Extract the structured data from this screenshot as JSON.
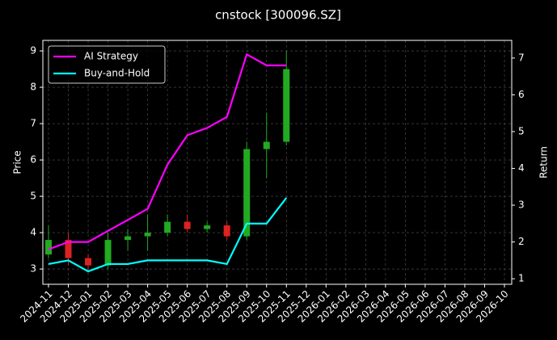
{
  "chart_data": {
    "type": "candlestick",
    "title": "cnstock [300096.SZ]",
    "y_label": "Price",
    "y2_label": "Return",
    "x": [
      "2024-11",
      "2024-12",
      "2025-01",
      "2025-02",
      "2025-03",
      "2025-04",
      "2025-05",
      "2025-06",
      "2025-07",
      "2025-08",
      "2025-09",
      "2025-10",
      "2025-11"
    ],
    "open": [
      3.4,
      3.8,
      3.3,
      3.1,
      3.8,
      3.9,
      4.0,
      4.3,
      4.1,
      4.2,
      3.9,
      6.3,
      6.5
    ],
    "high": [
      4.2,
      4.0,
      3.4,
      4.0,
      4.1,
      4.5,
      4.5,
      4.5,
      4.3,
      4.3,
      6.5,
      7.3,
      9.0
    ],
    "low": [
      3.3,
      3.1,
      2.9,
      3.0,
      3.5,
      3.5,
      3.9,
      4.0,
      4.0,
      3.8,
      3.8,
      5.5,
      6.4
    ],
    "close": [
      3.8,
      3.3,
      3.1,
      3.8,
      3.9,
      4.0,
      4.3,
      4.1,
      4.2,
      3.9,
      6.3,
      6.5,
      8.5
    ],
    "up_color": "#22aa22",
    "down_color": "#dd2222",
    "series": [
      {
        "name": "AI Strategy",
        "color": "#ff00ff",
        "axis": "y2",
        "values": [
          1.8,
          2.0,
          2.0,
          2.3,
          2.6,
          2.9,
          4.1,
          4.9,
          5.1,
          5.4,
          7.1,
          6.8,
          6.8
        ]
      },
      {
        "name": "Buy-and-Hold",
        "color": "#00ffff",
        "axis": "y2",
        "values": [
          1.4,
          1.5,
          1.2,
          1.4,
          1.4,
          1.5,
          1.5,
          1.5,
          1.5,
          1.4,
          2.5,
          2.5,
          3.2
        ]
      }
    ],
    "xlim": [
      "2024-11",
      "2026-10"
    ],
    "xticks": [
      "2024-11",
      "2024-12",
      "2025-01",
      "2025-02",
      "2025-03",
      "2025-04",
      "2025-05",
      "2025-06",
      "2025-07",
      "2025-08",
      "2025-09",
      "2025-10",
      "2025-11",
      "2025-12",
      "2026-01",
      "2026-02",
      "2026-03",
      "2026-04",
      "2026-05",
      "2026-06",
      "2026-07",
      "2026-08",
      "2026-09",
      "2026-10"
    ],
    "ylim": [
      2.58,
      9.29
    ],
    "yticks": [
      3,
      4,
      5,
      6,
      7,
      8,
      9
    ],
    "y2lim": [
      0.85,
      7.48
    ],
    "y2ticks": [
      1,
      2,
      3,
      4,
      5,
      6,
      7
    ],
    "grid": true,
    "legend": "upper left"
  }
}
